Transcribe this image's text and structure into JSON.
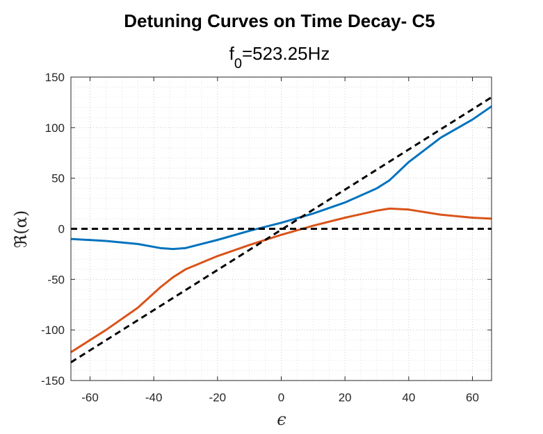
{
  "chart_data": {
    "type": "line",
    "title": "Detuning Curves on Time Decay- C5",
    "subtitle": {
      "base": "f",
      "subscript": "0",
      "rest": "=523.25Hz"
    },
    "xlabel": "ϵ",
    "ylabel": "ℜ(α)",
    "xlim": [
      -66,
      66
    ],
    "ylim": [
      -150,
      150
    ],
    "xticks": [
      -60,
      -40,
      -20,
      0,
      20,
      40,
      60
    ],
    "yticks": [
      -150,
      -100,
      -50,
      0,
      50,
      100,
      150
    ],
    "xtick_labels": [
      "-60",
      "-40",
      "-20",
      "0",
      "20",
      "40",
      "60"
    ],
    "ytick_labels": [
      "-150",
      "-100",
      "-50",
      "0",
      "50",
      "100",
      "150"
    ],
    "grid": true,
    "minor_grid": true,
    "series": [
      {
        "color": "#0072BD",
        "style": "solid",
        "x": [
          -66,
          -55,
          -45,
          -38,
          -34,
          -30,
          -20,
          -10,
          0,
          10,
          20,
          30,
          34,
          40,
          50,
          60,
          66
        ],
        "y": [
          -10,
          -12,
          -15,
          -19,
          -20,
          -19,
          -11,
          -2,
          6,
          15,
          26,
          40,
          48,
          66,
          90,
          108,
          121
        ]
      },
      {
        "color": "#D95319",
        "style": "solid",
        "x": [
          -66,
          -55,
          -45,
          -38,
          -34,
          -30,
          -20,
          -10,
          0,
          10,
          20,
          30,
          34,
          40,
          50,
          60,
          66
        ],
        "y": [
          -122,
          -100,
          -78,
          -58,
          -48,
          -40,
          -27,
          -16,
          -6,
          3,
          11,
          18,
          20,
          19,
          14,
          11,
          10
        ]
      },
      {
        "color": "#000000",
        "style": "dashed",
        "x": [
          -66,
          66
        ],
        "y": [
          -132,
          130
        ]
      },
      {
        "color": "#000000",
        "style": "dashed",
        "x": [
          -66,
          66
        ],
        "y": [
          0,
          0
        ]
      }
    ]
  }
}
